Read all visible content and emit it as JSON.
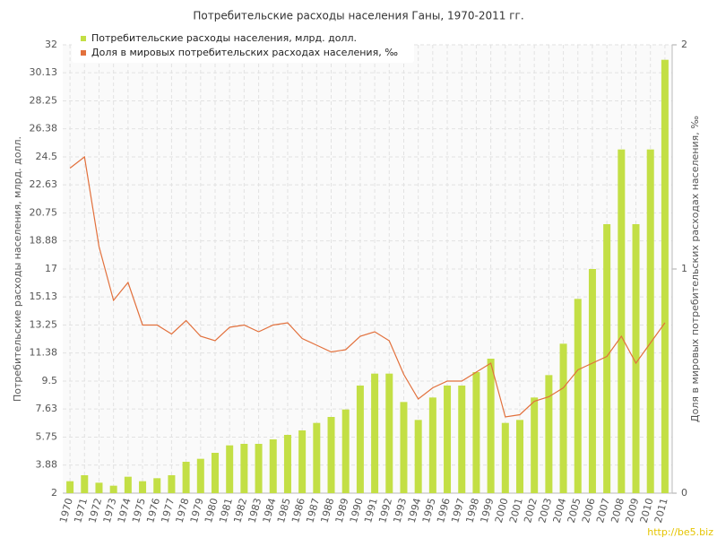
{
  "chart_data": {
    "type": "bar",
    "title": "Потребительские расходы населения Ганы, 1970-2011 гг.",
    "y_label": "Потребительские расходы населения, млрд. долл.",
    "y2_label": "Доля в мировых потребительских расходах населения, ‰",
    "watermark": "http://be5.biz",
    "categories": [
      "1970",
      "1971",
      "1972",
      "1973",
      "1974",
      "1975",
      "1976",
      "1977",
      "1978",
      "1979",
      "1980",
      "1981",
      "1982",
      "1983",
      "1984",
      "1985",
      "1986",
      "1987",
      "1988",
      "1989",
      "1990",
      "1991",
      "1992",
      "1993",
      "1994",
      "1995",
      "1996",
      "1997",
      "1998",
      "1999",
      "2000",
      "2001",
      "2002",
      "2003",
      "2004",
      "2005",
      "2006",
      "2007",
      "2008",
      "2009",
      "2010",
      "2011"
    ],
    "series": [
      {
        "name": "Потребительские расходы населения, млрд. долл.",
        "color": "#c3df45",
        "type": "bar",
        "values": [
          2.8,
          3.2,
          2.7,
          2.5,
          3.1,
          2.8,
          3.0,
          3.2,
          4.1,
          4.3,
          4.7,
          5.2,
          5.3,
          5.3,
          5.6,
          5.9,
          6.2,
          6.7,
          7.1,
          7.6,
          9.2,
          10.0,
          10.0,
          8.1,
          6.9,
          8.4,
          9.2,
          9.2,
          10.1,
          11.0,
          6.7,
          6.9,
          8.4,
          9.9,
          12.0,
          15.0,
          17.0,
          20.0,
          25.0,
          20.0,
          25.0,
          31.0
        ]
      },
      {
        "name": "Доля в мировых потребительских расходах населения, ‰",
        "color": "#e2703c",
        "type": "line",
        "axis": "y2",
        "values": [
          1.45,
          1.5,
          1.1,
          0.86,
          0.94,
          0.75,
          0.75,
          0.71,
          0.77,
          0.7,
          0.68,
          0.74,
          0.75,
          0.72,
          0.75,
          0.76,
          0.69,
          0.66,
          0.63,
          0.64,
          0.7,
          0.72,
          0.68,
          0.53,
          0.42,
          0.47,
          0.5,
          0.5,
          0.54,
          0.58,
          0.34,
          0.35,
          0.41,
          0.43,
          0.47,
          0.55,
          0.58,
          0.61,
          0.7,
          0.58,
          0.67,
          0.76
        ]
      }
    ],
    "ylim": [
      2,
      32
    ],
    "yticks": [
      2,
      3.88,
      5.75,
      7.63,
      9.5,
      11.38,
      13.25,
      15.13,
      17,
      18.88,
      20.75,
      22.63,
      24.5,
      26.38,
      28.25,
      30.13,
      32
    ],
    "y2lim": [
      0,
      2
    ],
    "y2ticks": [
      0,
      1,
      2
    ],
    "grid": true,
    "legend": "top-left"
  }
}
